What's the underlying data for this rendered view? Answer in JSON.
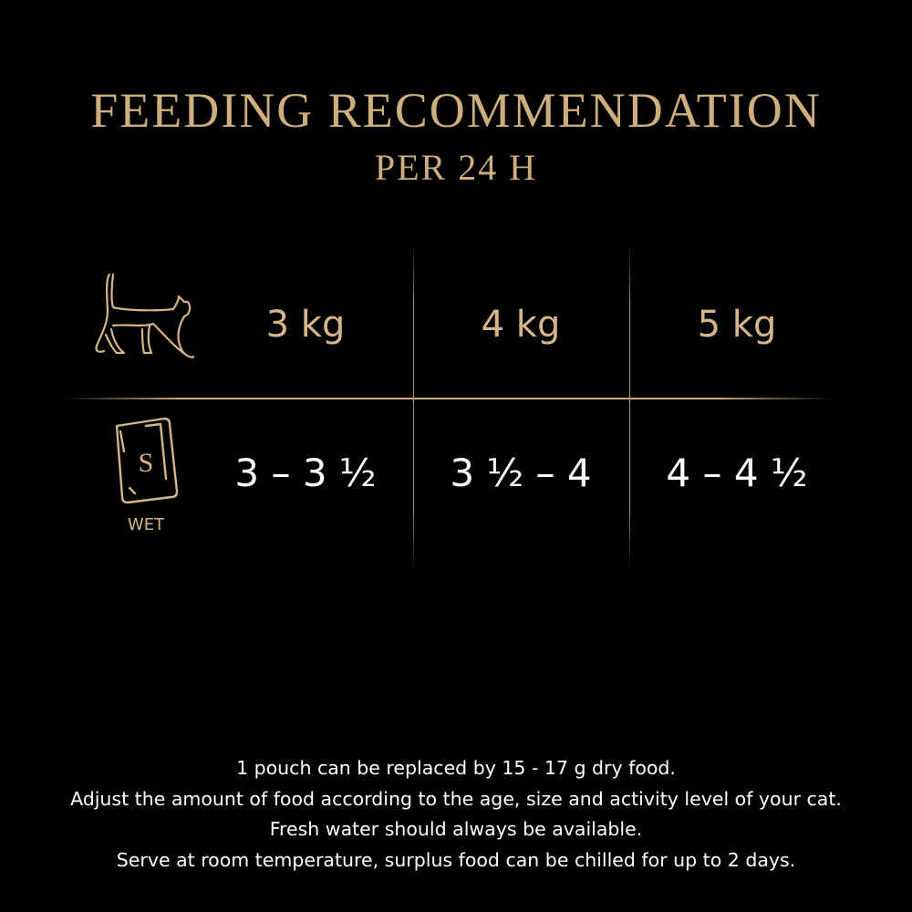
{
  "title": "FEEDING RECOMMENDATION",
  "subtitle": "PER 24 H",
  "colors": {
    "gold": "#d6b689",
    "background": "#000000",
    "text": "#ffffff"
  },
  "icons": {
    "row1": "walking-cat-icon",
    "row2": "wet-pouch-icon"
  },
  "pouch_letter": "S",
  "pouch_label": "WET",
  "weights": [
    "3 kg",
    "4 kg",
    "5 kg"
  ],
  "amounts": [
    "3 – 3 ½",
    "3 ½ – 4",
    "4 – 4 ½"
  ],
  "notes": [
    "1 pouch can be replaced by 15 - 17 g dry food.",
    "Adjust the amount of food according to the age, size and activity level of your cat.",
    "Fresh water should always be available.",
    "Serve at room temperature, surplus food can be chilled for up to 2 days."
  ]
}
